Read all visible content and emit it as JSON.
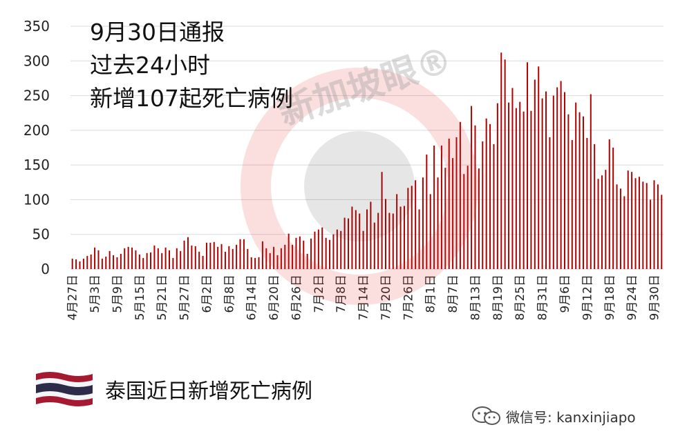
{
  "chart_data": {
    "type": "bar",
    "title_lines": [
      "9月30日通报",
      "过去24小时",
      "新增107起死亡病例"
    ],
    "legend": "泰国近日新增死亡病例",
    "ylim": [
      0,
      350
    ],
    "yticks": [
      0,
      50,
      100,
      150,
      200,
      250,
      300,
      350
    ],
    "grid": true,
    "bar_color": "#b00000",
    "x_tick_labels": [
      "4月27日",
      "5月3日",
      "5月9日",
      "5月15日",
      "5月21日",
      "5月27日",
      "6月2日",
      "6月8日",
      "6月14日",
      "6月20日",
      "6月26日",
      "7月2日",
      "7月8日",
      "7月14日",
      "7月20日",
      "7月26日",
      "8月1日",
      "8月7日",
      "8月13日",
      "8月19日",
      "8月25日",
      "8月31日",
      "9月6日",
      "9月12日",
      "9月18日",
      "9月24日",
      "9月30日"
    ],
    "values": [
      15,
      14,
      11,
      15,
      19,
      21,
      31,
      27,
      15,
      18,
      26,
      20,
      17,
      22,
      30,
      32,
      31,
      27,
      21,
      16,
      23,
      24,
      34,
      30,
      23,
      31,
      27,
      16,
      30,
      26,
      41,
      46,
      34,
      33,
      25,
      19,
      38,
      38,
      39,
      32,
      36,
      25,
      33,
      29,
      35,
      43,
      43,
      29,
      17,
      16,
      17,
      40,
      30,
      23,
      32,
      20,
      30,
      35,
      51,
      35,
      45,
      47,
      41,
      22,
      44,
      54,
      57,
      60,
      45,
      42,
      50,
      57,
      55,
      74,
      73,
      90,
      85,
      80,
      55,
      86,
      97,
      67,
      81,
      140,
      101,
      81,
      80,
      108,
      90,
      91,
      117,
      120,
      128,
      86,
      132,
      165,
      108,
      178,
      132,
      178,
      146,
      188,
      160,
      190,
      212,
      137,
      149,
      235,
      207,
      145,
      184,
      217,
      209,
      180,
      239,
      312,
      302,
      240,
      261,
      232,
      241,
      227,
      298,
      228,
      273,
      292,
      246,
      256,
      190,
      250,
      262,
      271,
      255,
      223,
      186,
      240,
      226,
      220,
      189,
      252,
      180,
      130,
      135,
      143,
      187,
      175,
      122,
      116,
      105,
      142,
      140,
      131,
      133,
      126,
      124,
      100,
      128,
      122,
      107
    ]
  },
  "wechat": {
    "icon": "wechat-icon",
    "text": "微信号: kanxinjiapo"
  },
  "watermark": {
    "text": "新加坡眼®",
    "colors": {
      "ring": "#e63a3a",
      "center": "#333333"
    }
  },
  "flag": {
    "name": "thailand-flag",
    "colors": [
      "#a51931",
      "#f4f5f8",
      "#2d2a4a"
    ]
  }
}
